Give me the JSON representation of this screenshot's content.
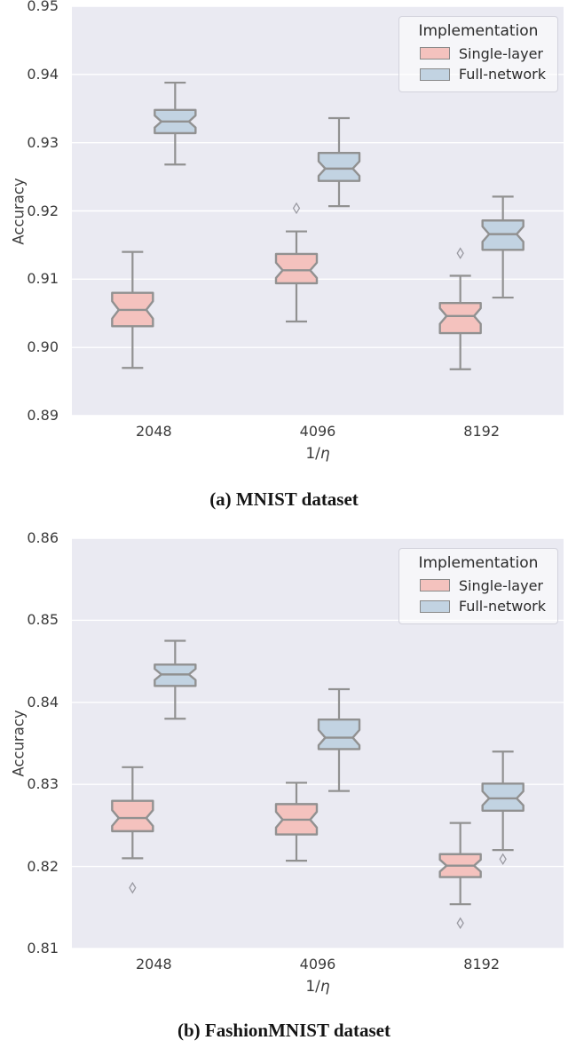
{
  "colors": {
    "plot_bg": "#eaeaf2",
    "grid_line": "#ffffff",
    "box_edge": "#919191",
    "single_layer_fill": "#f4c2be",
    "full_network_fill": "#c2d3e2",
    "outlier_stroke": "#9a9aa2",
    "tick_text": "#3b3b3b",
    "caption_text": "#151515"
  },
  "chart_data": [
    {
      "type": "box",
      "caption": "(a) MNIST dataset",
      "xlabel": "1/η",
      "ylabel": "Accuracy",
      "categories": [
        "2048",
        "4096",
        "8192"
      ],
      "ylim": [
        0.89,
        0.95
      ],
      "yticks": [
        "0.89",
        "0.90",
        "0.91",
        "0.92",
        "0.93",
        "0.94",
        "0.95"
      ],
      "grid": true,
      "legend": {
        "title": "Implementation",
        "position": "upper right"
      },
      "series": [
        {
          "name": "Single-layer",
          "color": "#f4c2be",
          "boxes": [
            {
              "whislo": 0.897,
              "q1": 0.9031,
              "med": 0.9055,
              "q3": 0.908,
              "whishi": 0.914,
              "fliers": []
            },
            {
              "whislo": 0.9038,
              "q1": 0.9094,
              "med": 0.9113,
              "q3": 0.9137,
              "whishi": 0.917,
              "fliers": [
                0.9204
              ]
            },
            {
              "whislo": 0.8968,
              "q1": 0.9021,
              "med": 0.9046,
              "q3": 0.9065,
              "whishi": 0.9105,
              "fliers": [
                0.9138
              ]
            }
          ]
        },
        {
          "name": "Full-network",
          "color": "#c2d3e2",
          "boxes": [
            {
              "whislo": 0.9268,
              "q1": 0.9314,
              "med": 0.9331,
              "q3": 0.9348,
              "whishi": 0.9388,
              "fliers": []
            },
            {
              "whislo": 0.9207,
              "q1": 0.9244,
              "med": 0.9262,
              "q3": 0.9285,
              "whishi": 0.9336,
              "fliers": []
            },
            {
              "whislo": 0.9073,
              "q1": 0.9143,
              "med": 0.9166,
              "q3": 0.9186,
              "whishi": 0.9221,
              "fliers": []
            }
          ]
        }
      ]
    },
    {
      "type": "box",
      "caption": "(b) FashionMNIST dataset",
      "xlabel": "1/η",
      "ylabel": "Accuracy",
      "categories": [
        "2048",
        "4096",
        "8192"
      ],
      "ylim": [
        0.81,
        0.86
      ],
      "yticks": [
        "0.81",
        "0.82",
        "0.83",
        "0.84",
        "0.85",
        "0.86"
      ],
      "grid": true,
      "legend": {
        "title": "Implementation",
        "position": "upper right"
      },
      "series": [
        {
          "name": "Single-layer",
          "color": "#f4c2be",
          "boxes": [
            {
              "whislo": 0.821,
              "q1": 0.8243,
              "med": 0.8259,
              "q3": 0.828,
              "whishi": 0.8321,
              "fliers": [
                0.8174
              ]
            },
            {
              "whislo": 0.8207,
              "q1": 0.8239,
              "med": 0.8257,
              "q3": 0.8276,
              "whishi": 0.8302,
              "fliers": []
            },
            {
              "whislo": 0.8154,
              "q1": 0.8187,
              "med": 0.8201,
              "q3": 0.8215,
              "whishi": 0.8253,
              "fliers": [
                0.8131
              ]
            }
          ]
        },
        {
          "name": "Full-network",
          "color": "#c2d3e2",
          "boxes": [
            {
              "whislo": 0.838,
              "q1": 0.842,
              "med": 0.8434,
              "q3": 0.8446,
              "whishi": 0.8475,
              "fliers": []
            },
            {
              "whislo": 0.8292,
              "q1": 0.8343,
              "med": 0.8357,
              "q3": 0.8379,
              "whishi": 0.8416,
              "fliers": []
            },
            {
              "whislo": 0.822,
              "q1": 0.8268,
              "med": 0.8283,
              "q3": 0.8301,
              "whishi": 0.834,
              "fliers": [
                0.8209
              ]
            }
          ]
        }
      ]
    }
  ]
}
